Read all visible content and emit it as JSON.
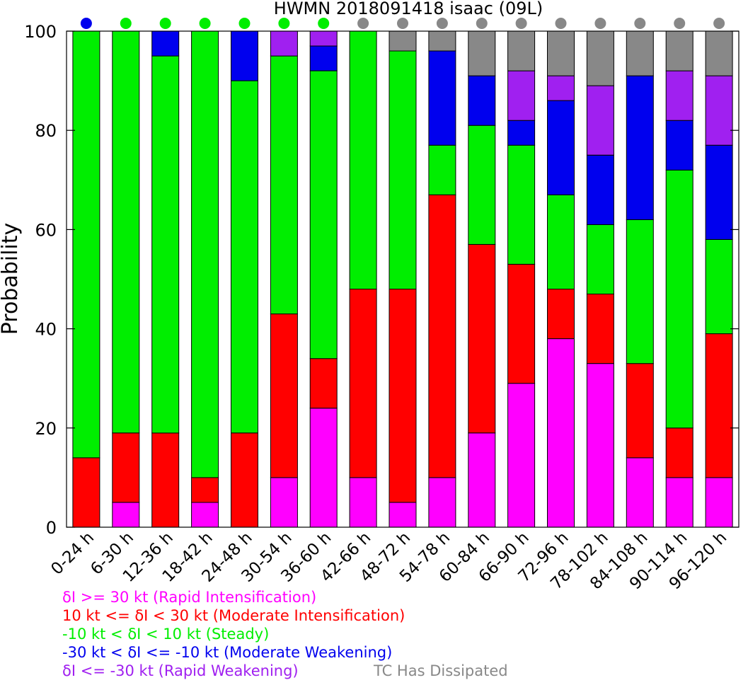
{
  "chart_data": {
    "type": "bar",
    "stacked": true,
    "title": "HWMN 2018091418 isaac (09L)",
    "xlabel": "",
    "ylabel": "Probability",
    "ylim": [
      0,
      100
    ],
    "yticks": [
      0,
      20,
      40,
      60,
      80,
      100
    ],
    "grid": false,
    "legend_position": "bottom-left",
    "categories": [
      "0-24 h",
      "6-30 h",
      "12-36 h",
      "18-42 h",
      "24-48 h",
      "30-54 h",
      "36-60 h",
      "42-66 h",
      "48-72 h",
      "54-78 h",
      "60-84 h",
      "66-90 h",
      "72-96 h",
      "78-102 h",
      "84-108 h",
      "90-114 h",
      "96-120 h"
    ],
    "series": [
      {
        "name": "δI >= 30 kt (Rapid Intensification)",
        "color": "#ff00ff",
        "values": [
          0,
          5,
          0,
          5,
          0,
          10,
          24,
          10,
          5,
          10,
          19,
          29,
          38,
          33,
          14,
          10,
          10
        ]
      },
      {
        "name": "10 kt <= δI < 30 kt (Moderate Intensification)",
        "color": "#ff0000",
        "values": [
          14,
          14,
          19,
          5,
          19,
          33,
          10,
          38,
          43,
          57,
          38,
          24,
          10,
          14,
          19,
          10,
          29
        ]
      },
      {
        "name": "-10 kt < δI < 10 kt (Steady)",
        "color": "#00ee00",
        "values": [
          86,
          81,
          76,
          90,
          71,
          52,
          58,
          52,
          48,
          10,
          24,
          24,
          19,
          14,
          29,
          52,
          19
        ]
      },
      {
        "name": "-30 kt < δI <= -10 kt (Moderate Weakening)",
        "color": "#0000ee",
        "values": [
          0,
          0,
          5,
          0,
          10,
          0,
          5,
          0,
          0,
          19,
          10,
          5,
          19,
          14,
          29,
          10,
          19
        ]
      },
      {
        "name": "δI <= -30 kt (Rapid Weakening)",
        "color": "#a020f0",
        "values": [
          0,
          0,
          0,
          0,
          0,
          5,
          3,
          0,
          0,
          0,
          0,
          10,
          5,
          14,
          0,
          10,
          14
        ]
      },
      {
        "name": "TC Has Dissipated",
        "color": "#888888",
        "values": [
          0,
          0,
          0,
          0,
          0,
          0,
          0,
          0,
          4,
          4,
          9,
          8,
          9,
          11,
          9,
          8,
          9
        ]
      }
    ],
    "dots": [
      "#0000ee",
      "#00ee00",
      "#00ee00",
      "#00ee00",
      "#00ee00",
      "#00ee00",
      "#00ee00",
      "#888888",
      "#888888",
      "#888888",
      "#888888",
      "#888888",
      "#888888",
      "#888888",
      "#888888",
      "#888888",
      "#888888"
    ]
  }
}
